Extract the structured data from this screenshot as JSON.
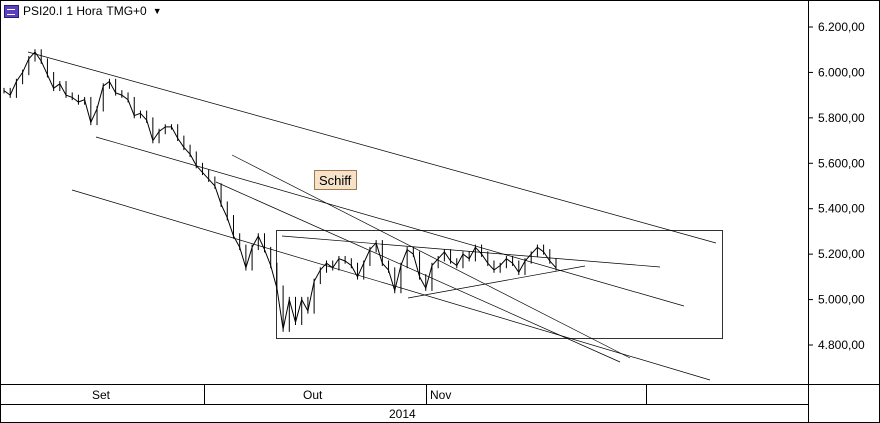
{
  "header": {
    "instrument": "PSI20.I",
    "period": "1 Hora",
    "timezone": "TMG+0",
    "dropdown_icon": "chevron-down-icon",
    "logo_icon": "chart-icon"
  },
  "annotation": {
    "label": "Schiff"
  },
  "colors": {
    "price": "#000000",
    "line": "#000000",
    "label_bg": "#f6e2c8",
    "label_border": "#8a5a2a"
  },
  "chart_data": {
    "type": "line",
    "title": "",
    "xlabel": "",
    "ylabel": "",
    "ylim": [
      4650,
      6300
    ],
    "grid": false,
    "y_ticks": [
      "6.200,00",
      "6.000,00",
      "5.800,00",
      "5.600,00",
      "5.400,00",
      "5.200,00",
      "5.000,00",
      "4.800,00"
    ],
    "y_tick_values": [
      6200,
      6000,
      5800,
      5600,
      5400,
      5200,
      5000,
      4800
    ],
    "x_labels": [
      "Set",
      "Out",
      "Nov"
    ],
    "year_label": "2014",
    "series": [
      {
        "values": [
          5920,
          5900,
          5960,
          6000,
          6060,
          6090,
          6050,
          5990,
          5930,
          5950,
          5900,
          5890,
          5870,
          5880,
          5780,
          5840,
          5940,
          5960,
          5910,
          5900,
          5880,
          5810,
          5820,
          5790,
          5700,
          5740,
          5760,
          5760,
          5710,
          5670,
          5640,
          5590,
          5560,
          5530,
          5500,
          5420,
          5360,
          5280,
          5230,
          5140,
          5230,
          5280,
          5220,
          5150,
          5050,
          4870,
          5000,
          4900,
          5000,
          4950,
          5080,
          5130,
          5160,
          5140,
          5180,
          5170,
          5150,
          5100,
          5160,
          5220,
          5250,
          5160,
          5130,
          5040,
          5150,
          5220,
          5200,
          5100,
          5050,
          5150,
          5180,
          5210,
          5170,
          5150,
          5200,
          5180,
          5230,
          5200,
          5160,
          5130,
          5150,
          5180,
          5160,
          5120,
          5170,
          5200,
          5230,
          5210,
          5170,
          5140
        ]
      }
    ],
    "annotations": [
      "Schiff"
    ]
  }
}
